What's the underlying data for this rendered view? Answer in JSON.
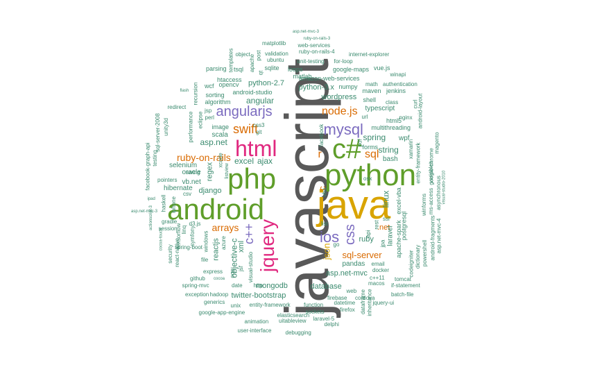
{
  "words": [
    {
      "text": "javascript",
      "color": "#595959"
    },
    {
      "text": "java",
      "color": "#d9a400"
    },
    {
      "text": "android",
      "color": "#5f9e2a"
    },
    {
      "text": "python",
      "color": "#5f9e2a"
    },
    {
      "text": "php",
      "color": "#5f9e2a"
    },
    {
      "text": "c#",
      "color": "#5f9e2a"
    },
    {
      "text": "html",
      "color": "#e0287f"
    },
    {
      "text": "jquery",
      "color": "#e0287f"
    },
    {
      "text": "ios",
      "color": "#7b6bbf"
    },
    {
      "text": "css",
      "color": "#7b6bbf"
    },
    {
      "text": "mysql",
      "color": "#7b6bbf"
    },
    {
      "text": "angularjs",
      "color": "#7b6bbf"
    },
    {
      "text": "c++",
      "color": "#7b6bbf"
    },
    {
      "text": "swift",
      "color": "#d96a00"
    },
    {
      "text": "node.js",
      "color": "#d96a00"
    },
    {
      "text": "sql",
      "color": "#d96a00"
    },
    {
      "text": "r",
      "color": "#d96a00"
    },
    {
      "text": "arrays",
      "color": "#d96a00"
    },
    {
      "text": "ruby-on-rails",
      "color": "#d96a00"
    },
    {
      "text": "json",
      "color": "#d9a400"
    },
    {
      "text": "c",
      "color": "#d96a00"
    },
    {
      "text": ".net",
      "color": "#d96a00"
    },
    {
      "text": "sql-server",
      "color": "#d96a00"
    },
    {
      "text": "objective-c",
      "color": "#3a8a6e"
    },
    {
      "text": "asp.net",
      "color": "#3a8a6e"
    },
    {
      "text": "angular",
      "color": "#3a8a6e"
    },
    {
      "text": "excel",
      "color": "#3a8a6e"
    },
    {
      "text": "ajax",
      "color": "#3a8a6e"
    },
    {
      "text": "linux",
      "color": "#3a8a6e"
    },
    {
      "text": "spring",
      "color": "#3a8a6e"
    },
    {
      "text": "string",
      "color": "#3a8a6e"
    },
    {
      "text": "ruby",
      "color": "#3a8a6e"
    },
    {
      "text": "asp.net-mvc",
      "color": "#3a8a6e"
    },
    {
      "text": "regex",
      "color": "#3a8a6e"
    },
    {
      "text": "django",
      "color": "#3a8a6e"
    },
    {
      "text": "reactjs",
      "color": "#3a8a6e"
    },
    {
      "text": "xml",
      "color": "#3a8a6e"
    },
    {
      "text": "wordpress",
      "color": "#3a8a6e"
    },
    {
      "text": "python-3.x",
      "color": "#3a8a6e"
    },
    {
      "text": "python-2.7",
      "color": "#3a8a6e"
    },
    {
      "text": "mongodb",
      "color": "#3a8a6e"
    },
    {
      "text": "twitter-bootstrap",
      "color": "#3a8a6e"
    },
    {
      "text": "database",
      "color": "#3a8a6e"
    },
    {
      "text": "pandas",
      "color": "#3a8a6e"
    },
    {
      "text": "scala",
      "color": "#3a8a6e"
    },
    {
      "text": "wpf",
      "color": "#3a8a6e"
    },
    {
      "text": "bash",
      "color": "#3a8a6e"
    },
    {
      "text": "typescript",
      "color": "#3a8a6e"
    },
    {
      "text": "laravel",
      "color": "#3a8a6e"
    },
    {
      "text": "vb.net",
      "color": "#3a8a6e"
    },
    {
      "text": "oracle",
      "color": "#3a8a6e"
    },
    {
      "text": "hibernate",
      "color": "#3a8a6e"
    },
    {
      "text": "selenium",
      "color": "#3a8a6e"
    },
    {
      "text": "image",
      "color": "#3a8a6e"
    },
    {
      "text": "amazon-web-services",
      "color": "#3a8a6e"
    },
    {
      "text": "android-studio",
      "color": "#3a8a6e"
    },
    {
      "text": "algorithm",
      "color": "#3a8a6e"
    },
    {
      "text": "sorting",
      "color": "#3a8a6e"
    },
    {
      "text": "htaccess",
      "color": "#3a8a6e"
    },
    {
      "text": "wcf",
      "color": "#3a8a6e"
    },
    {
      "text": "opencv",
      "color": "#3a8a6e"
    },
    {
      "text": "parsing",
      "color": "#3a8a6e"
    },
    {
      "text": "tsql",
      "color": "#3a8a6e"
    },
    {
      "text": "sqlite",
      "color": "#3a8a6e"
    },
    {
      "text": "loops",
      "color": "#3a8a6e"
    },
    {
      "text": "google-maps",
      "color": "#3a8a6e"
    },
    {
      "text": "vue.js",
      "color": "#3a8a6e"
    },
    {
      "text": "matlab",
      "color": "#3a8a6e"
    },
    {
      "text": "numpy",
      "color": "#3a8a6e"
    },
    {
      "text": "maven",
      "color": "#3a8a6e"
    },
    {
      "text": "jenkins",
      "color": "#3a8a6e"
    },
    {
      "text": "shell",
      "color": "#3a8a6e"
    },
    {
      "text": "class",
      "color": "#3a8a6e"
    },
    {
      "text": "multithreading",
      "color": "#3a8a6e"
    },
    {
      "text": "html5",
      "color": "#3a8a6e"
    },
    {
      "text": "forms",
      "color": "#3a8a6e"
    },
    {
      "text": "postgresql",
      "color": "#3a8a6e"
    },
    {
      "text": "excel-vba",
      "color": "#3a8a6e"
    },
    {
      "text": "apache-spark",
      "color": "#3a8a6e"
    },
    {
      "text": "matplotlib",
      "color": "#3a8a6e"
    },
    {
      "text": "web-services",
      "color": "#3a8a6e"
    },
    {
      "text": "ruby-on-rails-4",
      "color": "#3a8a6e"
    },
    {
      "text": "internet-explorer",
      "color": "#3a8a6e"
    },
    {
      "text": "unit-testing",
      "color": "#3a8a6e"
    },
    {
      "text": "for-loop",
      "color": "#3a8a6e"
    },
    {
      "text": "ubuntu",
      "color": "#3a8a6e"
    },
    {
      "text": "validation",
      "color": "#3a8a6e"
    },
    {
      "text": "object",
      "color": "#3a8a6e"
    },
    {
      "text": "post",
      "color": "#3a8a6e"
    },
    {
      "text": "asp.net-mvc-3",
      "color": "#3a8a6e"
    },
    {
      "text": "ruby-on-rails-3",
      "color": "#3a8a6e"
    },
    {
      "text": "math",
      "color": "#3a8a6e"
    },
    {
      "text": "authentication",
      "color": "#3a8a6e"
    },
    {
      "text": "winapi",
      "color": "#3a8a6e"
    },
    {
      "text": "curl",
      "color": "#3a8a6e"
    },
    {
      "text": "nginx",
      "color": "#3a8a6e"
    },
    {
      "text": "url",
      "color": "#3a8a6e"
    },
    {
      "text": "docker",
      "color": "#3a8a6e"
    },
    {
      "text": "email",
      "color": "#3a8a6e"
    },
    {
      "text": "macos",
      "color": "#3a8a6e"
    },
    {
      "text": "c++11",
      "color": "#3a8a6e"
    },
    {
      "text": "tomcat",
      "color": "#3a8a6e"
    },
    {
      "text": "if-statement",
      "color": "#3a8a6e"
    },
    {
      "text": "web",
      "color": "#3a8a6e"
    },
    {
      "text": "firebase",
      "color": "#3a8a6e"
    },
    {
      "text": "cordova",
      "color": "#3a8a6e"
    },
    {
      "text": "batch-file",
      "color": "#3a8a6e"
    },
    {
      "text": "datetime",
      "color": "#3a8a6e"
    },
    {
      "text": "jquery-ui",
      "color": "#3a8a6e"
    },
    {
      "text": "firefox",
      "color": "#3a8a6e"
    },
    {
      "text": "function",
      "color": "#3a8a6e"
    },
    {
      "text": "sockets",
      "color": "#3a8a6e"
    },
    {
      "text": "laravel-5",
      "color": "#3a8a6e"
    },
    {
      "text": "delphi",
      "color": "#3a8a6e"
    },
    {
      "text": "uitableview",
      "color": "#3a8a6e"
    },
    {
      "text": "animation",
      "color": "#3a8a6e"
    },
    {
      "text": "elasticsearch",
      "color": "#3a8a6e"
    },
    {
      "text": "entity-framework",
      "color": "#3a8a6e"
    },
    {
      "text": "unix",
      "color": "#3a8a6e"
    },
    {
      "text": "generics",
      "color": "#3a8a6e"
    },
    {
      "text": "hadoop",
      "color": "#3a8a6e"
    },
    {
      "text": "exception",
      "color": "#3a8a6e"
    },
    {
      "text": "google-app-engine",
      "color": "#3a8a6e"
    },
    {
      "text": "user-interface",
      "color": "#3a8a6e"
    },
    {
      "text": "debugging",
      "color": "#3a8a6e"
    },
    {
      "text": "spring-mvc",
      "color": "#3a8a6e"
    },
    {
      "text": "date",
      "color": "#3a8a6e"
    },
    {
      "text": "http",
      "color": "#3a8a6e"
    },
    {
      "text": "github",
      "color": "#3a8a6e"
    },
    {
      "text": "cocoa",
      "color": "#3a8a6e"
    },
    {
      "text": "express",
      "color": "#3a8a6e"
    },
    {
      "text": "spring-boot",
      "color": "#3a8a6e"
    },
    {
      "text": "symfony",
      "color": "#3a8a6e"
    },
    {
      "text": "react-native",
      "color": "#3a8a6e"
    },
    {
      "text": "tensorflow",
      "color": "#3a8a6e"
    },
    {
      "text": "security",
      "color": "#3a8a6e"
    },
    {
      "text": "session",
      "color": "#3a8a6e"
    },
    {
      "text": "gradle",
      "color": "#3a8a6e"
    },
    {
      "text": "haskell",
      "color": "#3a8a6e"
    },
    {
      "text": "iphone",
      "color": "#3a8a6e"
    },
    {
      "text": "pointers",
      "color": "#3a8a6e"
    },
    {
      "text": "swing",
      "color": "#3a8a6e"
    },
    {
      "text": "csv",
      "color": "#3a8a6e"
    },
    {
      "text": "file",
      "color": "#3a8a6e"
    },
    {
      "text": "azure",
      "color": "#3a8a6e"
    },
    {
      "text": "windows",
      "color": "#3a8a6e"
    },
    {
      "text": "linq",
      "color": "#3a8a6e"
    },
    {
      "text": "d3.js",
      "color": "#3a8a6e"
    },
    {
      "text": "testing",
      "color": "#3a8a6e"
    },
    {
      "text": "sql-server-2008",
      "color": "#3a8a6e"
    },
    {
      "text": "facebook-graph-api",
      "color": "#3a8a6e"
    },
    {
      "text": "ipad",
      "color": "#3a8a6e"
    },
    {
      "text": "actionscript-3",
      "color": "#3a8a6e"
    },
    {
      "text": "cocoa-touch",
      "color": "#3a8a6e"
    },
    {
      "text": "unity3d",
      "color": "#3a8a6e"
    },
    {
      "text": "performance",
      "color": "#3a8a6e"
    },
    {
      "text": "redirect",
      "color": "#3a8a6e"
    },
    {
      "text": "eclipse",
      "color": "#3a8a6e"
    },
    {
      "text": "jsp",
      "color": "#3a8a6e"
    },
    {
      "text": "perl",
      "color": "#3a8a6e"
    },
    {
      "text": "recursion",
      "color": "#3a8a6e"
    },
    {
      "text": "flash",
      "color": "#3a8a6e"
    },
    {
      "text": "xcode",
      "color": "#3a8a6e"
    },
    {
      "text": "listview",
      "color": "#3a8a6e"
    },
    {
      "text": "git",
      "color": "#3a8a6e"
    },
    {
      "text": "css3",
      "color": "#3a8a6e"
    },
    {
      "text": "apache",
      "color": "#3a8a6e"
    },
    {
      "text": "templates",
      "color": "#3a8a6e"
    },
    {
      "text": "qt",
      "color": "#3a8a6e"
    },
    {
      "text": "vba",
      "color": "#3a8a6e"
    },
    {
      "text": "facebook",
      "color": "#3a8a6e"
    },
    {
      "text": "pdf",
      "color": "#3a8a6e"
    },
    {
      "text": "list",
      "color": "#3a8a6e"
    },
    {
      "text": "go",
      "color": "#3a8a6e"
    },
    {
      "text": "api",
      "color": "#3a8a6e"
    },
    {
      "text": "jpa",
      "color": "#3a8a6e"
    },
    {
      "text": "rest",
      "color": "#3a8a6e"
    },
    {
      "text": "ssl",
      "color": "#3a8a6e"
    },
    {
      "text": "osx",
      "color": "#3a8a6e"
    },
    {
      "text": "visual-studio",
      "color": "#3a8a6e"
    },
    {
      "text": "jsf",
      "color": "#3a8a6e"
    },
    {
      "text": "oop",
      "color": "#3a8a6e"
    },
    {
      "text": "xamarin",
      "color": "#3a8a6e"
    },
    {
      "text": "codeigniter",
      "color": "#3a8a6e"
    },
    {
      "text": "dictionary",
      "color": "#3a8a6e"
    },
    {
      "text": "powershell",
      "color": "#3a8a6e"
    },
    {
      "text": "android-fragments",
      "color": "#3a8a6e"
    },
    {
      "text": "winforms",
      "color": "#3a8a6e"
    },
    {
      "text": "ms-access",
      "color": "#3a8a6e"
    },
    {
      "text": "variables",
      "color": "#3a8a6e"
    },
    {
      "text": "google-chrome",
      "color": "#3a8a6e"
    },
    {
      "text": "asynchronous",
      "color": "#3a8a6e"
    },
    {
      "text": "asp.net-mvc-4",
      "color": "#3a8a6e"
    },
    {
      "text": "magento",
      "color": "#3a8a6e"
    },
    {
      "text": "android-layout",
      "color": "#3a8a6e"
    },
    {
      "text": "entity-framework",
      "color": "#3a8a6e"
    },
    {
      "text": "visual-studio-2010",
      "color": "#3a8a6e"
    },
    {
      "text": "dataframe",
      "color": "#3a8a6e"
    },
    {
      "text": "inheritance",
      "color": "#3a8a6e"
    },
    {
      "text": "asp.net-mvc-3",
      "color": "#3a8a6e"
    }
  ]
}
